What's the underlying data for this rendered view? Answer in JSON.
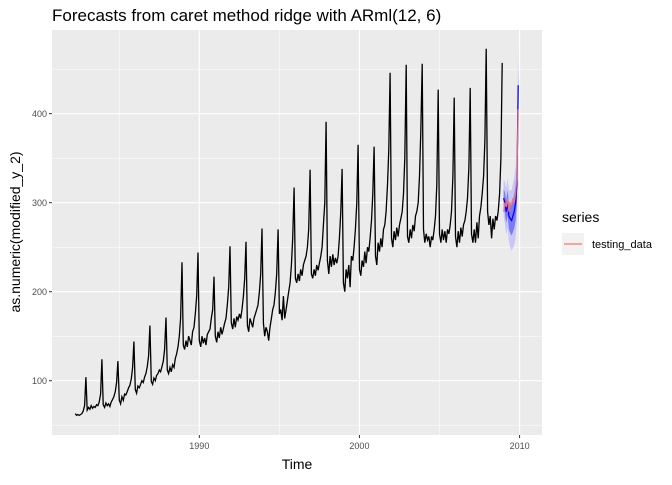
{
  "chart_data": {
    "type": "line",
    "title": "Forecasts from caret method ridge with ARml(12,  6)",
    "xlabel": "Time",
    "ylabel": "as.numeric(modified_y_2)",
    "xlim": [
      1980.8,
      2011.4
    ],
    "ylim": [
      39,
      494
    ],
    "x_ticks": [
      1990,
      2000,
      2010
    ],
    "y_ticks": [
      100,
      200,
      300,
      400
    ],
    "grid": true,
    "legend": {
      "title": "series",
      "placement": "right",
      "entries": [
        {
          "name": "testing_data",
          "color": "#F8766D"
        }
      ]
    },
    "colors": {
      "history": "#000000",
      "testing_data": "#F8766D",
      "forecast": "#0000FF",
      "interval80": "#7B7BF5",
      "interval95": "#C8C8F8",
      "panel": "#EBEBEB",
      "grid": "#FFFFFF"
    },
    "history": {
      "start": 1982.25,
      "frequency": 12,
      "values": [
        63,
        61,
        62,
        61,
        62,
        63,
        66,
        72,
        104,
        67,
        70,
        68,
        72,
        69,
        71,
        70,
        73,
        72,
        76,
        85,
        124,
        73,
        70,
        75,
        72,
        74,
        71,
        76,
        79,
        82,
        88,
        98,
        122,
        78,
        74,
        82,
        78,
        85,
        84,
        88,
        92,
        95,
        102,
        115,
        144,
        90,
        86,
        94,
        92,
        96,
        100,
        98,
        104,
        108,
        116,
        128,
        162,
        99,
        96,
        103,
        100,
        106,
        108,
        112,
        110,
        116,
        122,
        135,
        171,
        112,
        108,
        115,
        110,
        118,
        115,
        125,
        130,
        138,
        150,
        170,
        233,
        140,
        135,
        145,
        138,
        150,
        145,
        140,
        155,
        160,
        175,
        195,
        244,
        145,
        138,
        150,
        142,
        148,
        140,
        152,
        155,
        158,
        170,
        180,
        217,
        150,
        143,
        155,
        148,
        160,
        152,
        158,
        165,
        170,
        185,
        205,
        251,
        165,
        158,
        170,
        160,
        172,
        168,
        175,
        170,
        180,
        195,
        215,
        256,
        162,
        155,
        170,
        165,
        160,
        170,
        175,
        180,
        185,
        200,
        220,
        271,
        165,
        150,
        160,
        155,
        145,
        160,
        170,
        180,
        185,
        200,
        220,
        270,
        175,
        180,
        168,
        195,
        170,
        180,
        190,
        200,
        210,
        230,
        260,
        317,
        215,
        210,
        220,
        212,
        225,
        218,
        230,
        235,
        240,
        250,
        270,
        337,
        220,
        215,
        225,
        218,
        230,
        224,
        232,
        240,
        250,
        275,
        300,
        391,
        235,
        220,
        240,
        228,
        242,
        230,
        238,
        232,
        240,
        260,
        290,
        338,
        210,
        200,
        225,
        215,
        230,
        205,
        240,
        235,
        250,
        270,
        300,
        365,
        225,
        218,
        235,
        228,
        245,
        232,
        250,
        245,
        260,
        280,
        310,
        363,
        240,
        230,
        255,
        245,
        260,
        250,
        270,
        275,
        290,
        320,
        360,
        446,
        260,
        250,
        268,
        258,
        272,
        262,
        275,
        282,
        290,
        310,
        350,
        455,
        262,
        255,
        270,
        260,
        275,
        268,
        285,
        290,
        300,
        330,
        380,
        456,
        270,
        255,
        265,
        258,
        262,
        250,
        262,
        258,
        270,
        285,
        320,
        427,
        265,
        255,
        270,
        258,
        268,
        255,
        270,
        265,
        275,
        290,
        330,
        418,
        262,
        250,
        268,
        255,
        272,
        262,
        275,
        280,
        290,
        305,
        340,
        429,
        265,
        255,
        270,
        255,
        278,
        260,
        285,
        295,
        310,
        330,
        370,
        473,
        290,
        275,
        285,
        260,
        282,
        270,
        285,
        280,
        290,
        310,
        350,
        457
      ]
    },
    "testing_data": {
      "start": 2009.0,
      "frequency": 12,
      "values": [
        290,
        300,
        295,
        305,
        290,
        300,
        298,
        305,
        300,
        310,
        330,
        405
      ]
    },
    "forecast": {
      "start": 2009.0,
      "frequency": 12,
      "values": [
        305,
        300,
        290,
        300,
        285,
        282,
        280,
        285,
        290,
        300,
        320,
        432
      ],
      "lo80": [
        295,
        288,
        277,
        286,
        270,
        266,
        263,
        267,
        271,
        280,
        299,
        410
      ],
      "hi80": [
        315,
        312,
        303,
        314,
        300,
        298,
        297,
        303,
        309,
        320,
        341,
        454
      ],
      "lo95": [
        285,
        276,
        264,
        272,
        256,
        250,
        246,
        249,
        252,
        260,
        278,
        390
      ],
      "hi95": [
        325,
        324,
        316,
        328,
        314,
        314,
        314,
        321,
        328,
        340,
        362,
        474
      ]
    }
  }
}
